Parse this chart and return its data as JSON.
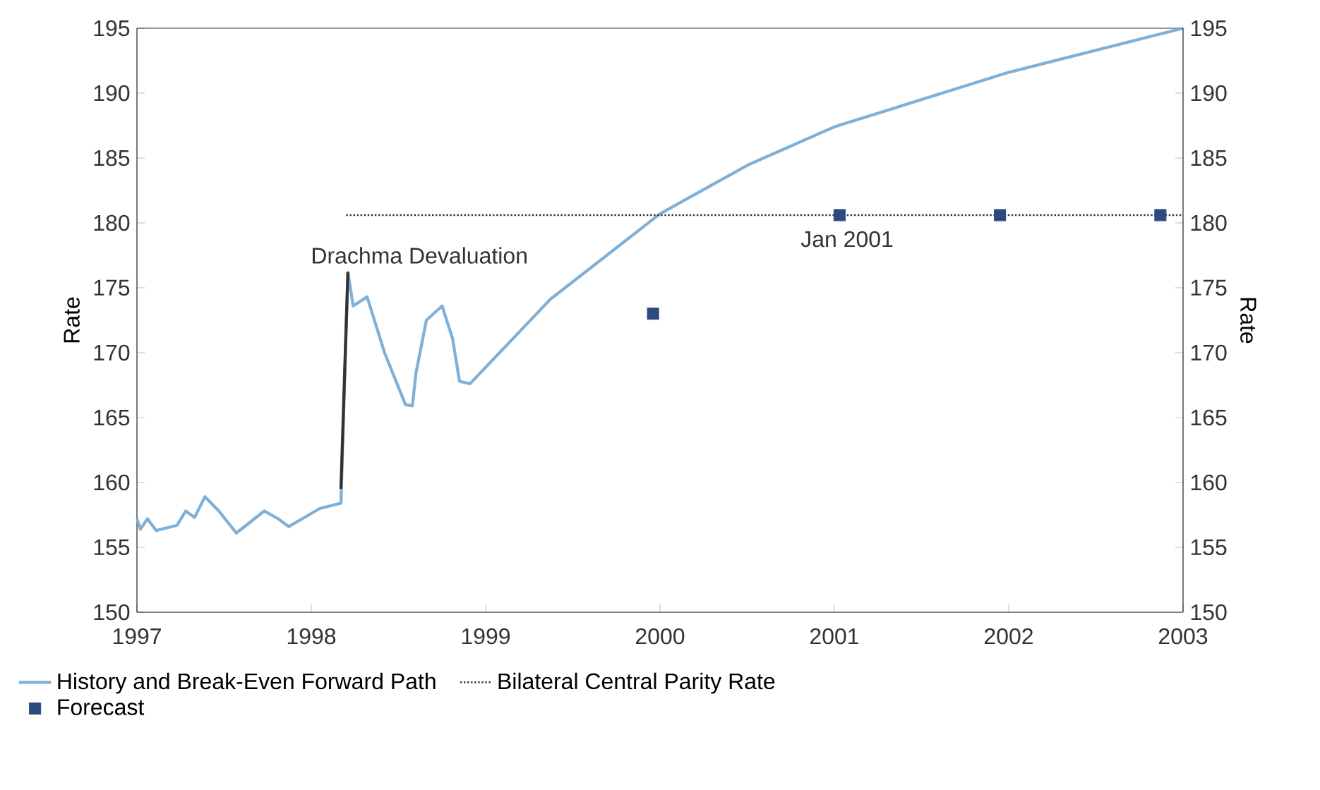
{
  "chart_data": {
    "type": "line",
    "ylabel": "Rate",
    "y2label": "Rate",
    "xlim": [
      1997,
      2003
    ],
    "xticks": [
      1997,
      1998,
      1999,
      2000,
      2001,
      2002,
      2003
    ],
    "ylim": [
      150,
      195
    ],
    "yticks": [
      150,
      155,
      160,
      165,
      170,
      175,
      180,
      185,
      190,
      195
    ],
    "y2lim": [
      150,
      195
    ],
    "y2ticks": [
      150,
      155,
      160,
      165,
      170,
      175,
      180,
      185,
      190,
      195
    ],
    "grid": false,
    "legend": "bottom",
    "series": [
      {
        "name": "History and Break-Even Forward Path",
        "color": "#7fb0d8",
        "line_style": "solid",
        "marker": "none",
        "x": [
          1997.0,
          1997.02,
          1997.06,
          1997.11,
          1997.23,
          1997.28,
          1997.33,
          1997.39,
          1997.47,
          1997.57,
          1997.73,
          1997.81,
          1997.87,
          1998.05,
          1998.17,
          1998.21,
          1998.24,
          1998.32,
          1998.42,
          1998.54,
          1998.58,
          1998.6,
          1998.66,
          1998.75,
          1998.81,
          1998.85,
          1998.91,
          1999.37,
          2000.0,
          2000.51,
          2001.0,
          2002.0,
          2003.0
        ],
        "values": [
          157.2,
          156.4,
          157.2,
          156.3,
          156.7,
          157.8,
          157.3,
          158.9,
          157.8,
          156.1,
          157.8,
          157.2,
          156.6,
          158.0,
          158.4,
          176.2,
          173.6,
          174.3,
          170.0,
          166.0,
          165.9,
          168.4,
          172.5,
          173.6,
          171.1,
          167.8,
          167.6,
          174.1,
          180.7,
          184.5,
          187.4,
          191.6,
          195.0
        ]
      },
      {
        "name": "Bilateral Central Parity Rate",
        "color": "#333333",
        "line_style": "dotted",
        "marker": "none",
        "x": [
          1998.2,
          2003.0
        ],
        "values": [
          180.6,
          180.6
        ]
      },
      {
        "name": "Forecast",
        "type": "scatter",
        "color": "#2b4a7e",
        "marker": "square",
        "x": [
          1999.96,
          2001.03,
          2001.95,
          2002.87
        ],
        "values": [
          173.0,
          180.6,
          180.6,
          180.6
        ]
      },
      {
        "color": "#333333",
        "line_style": "solid",
        "marker": "none",
        "x": [
          1998.17,
          1998.19,
          1998.21
        ],
        "values": [
          159.5,
          168.0,
          176.2
        ]
      }
    ],
    "annotations": [
      {
        "text": "Drachma Devaluation",
        "x": 1998.21,
        "y": 176.2
      },
      {
        "text": "Jan 2001",
        "x": 2001.03,
        "y": 180.6
      }
    ]
  }
}
